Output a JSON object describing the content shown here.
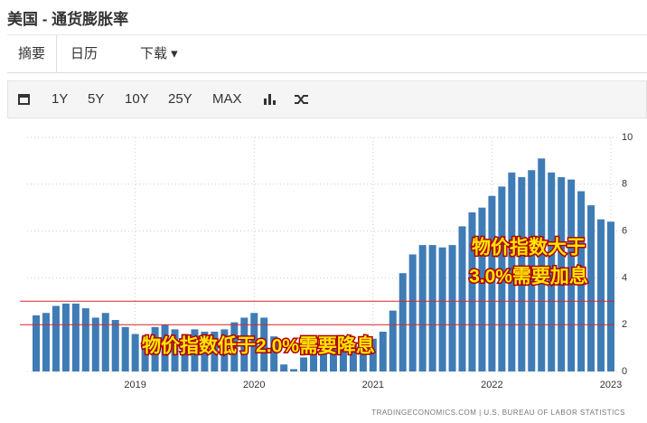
{
  "header": {
    "title": "美国 - 通货膨胀率"
  },
  "tabs": [
    "摘要",
    "日历",
    "下载"
  ],
  "toolbar": [
    "1Y",
    "5Y",
    "10Y",
    "25Y",
    "MAX"
  ],
  "chart_data": {
    "type": "bar",
    "categories": [
      null,
      null,
      null,
      null,
      null,
      null,
      null,
      null,
      null,
      null,
      "2019",
      null,
      null,
      null,
      null,
      null,
      null,
      null,
      null,
      null,
      null,
      null,
      "2020",
      null,
      null,
      null,
      null,
      null,
      null,
      null,
      null,
      null,
      null,
      null,
      "2021",
      null,
      null,
      null,
      null,
      null,
      null,
      null,
      null,
      null,
      null,
      null,
      "2022",
      null,
      null,
      null,
      null,
      null,
      null,
      null,
      null,
      null,
      null,
      null,
      "2023"
    ],
    "values": [
      2.4,
      2.5,
      2.8,
      2.9,
      2.9,
      2.7,
      2.3,
      2.5,
      2.2,
      1.9,
      1.6,
      1.5,
      1.9,
      2.0,
      1.8,
      1.6,
      1.8,
      1.7,
      1.7,
      1.8,
      2.1,
      2.3,
      2.5,
      2.3,
      1.5,
      0.3,
      0.1,
      0.6,
      1.0,
      1.3,
      1.4,
      1.2,
      1.2,
      1.4,
      1.4,
      1.7,
      2.6,
      4.2,
      5.0,
      5.4,
      5.4,
      5.3,
      5.4,
      6.2,
      6.8,
      7.0,
      7.5,
      7.9,
      8.5,
      8.3,
      8.6,
      9.1,
      8.5,
      8.3,
      8.2,
      7.7,
      7.1,
      6.5,
      6.4
    ],
    "color": "#3f7cb6",
    "ylim": [
      0,
      10
    ],
    "yticks": [
      0,
      2,
      4,
      6,
      8,
      10
    ],
    "grid": true,
    "reference_lines": [
      {
        "value": 3,
        "color": "#d62728"
      },
      {
        "value": 2,
        "color": "#d62728"
      }
    ],
    "annotations": [
      [
        "物价指数大于",
        "3.0%需要加息"
      ],
      [
        "物价指数低于2.0%需要降息"
      ]
    ],
    "source": "TRADINGECONOMICS.COM | U.S. BUREAU OF LABOR STATISTICS"
  }
}
